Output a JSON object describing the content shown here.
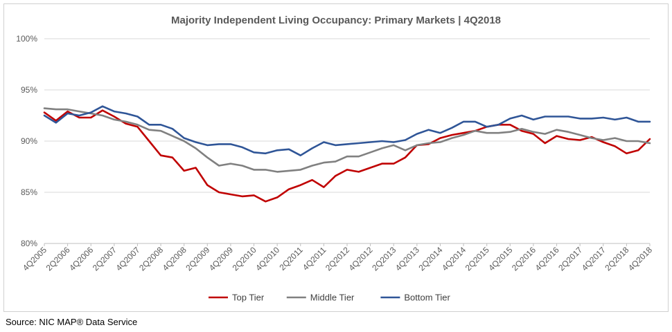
{
  "source_note": "Source: NIC MAP® Data Service",
  "chart_data": {
    "type": "line",
    "title": "Majority Independent Living Occupancy: Primary Markets | 4Q2018",
    "xlabel": "",
    "ylabel": "",
    "ylim": [
      80,
      100
    ],
    "yticks": [
      "80%",
      "85%",
      "90%",
      "95%",
      "100%"
    ],
    "ytick_values": [
      80,
      85,
      90,
      95,
      100
    ],
    "grid": "horizontal",
    "legend_position": "bottom",
    "x_tick_labels": [
      "4Q2005",
      "2Q2006",
      "4Q2006",
      "2Q2007",
      "4Q2007",
      "2Q2008",
      "4Q2008",
      "2Q2009",
      "4Q2009",
      "2Q2010",
      "4Q2010",
      "2Q2011",
      "4Q2011",
      "2Q2012",
      "4Q2012",
      "2Q2013",
      "4Q2013",
      "2Q2014",
      "4Q2014",
      "2Q2015",
      "4Q2015",
      "2Q2016",
      "4Q2016",
      "2Q2017",
      "4Q2017",
      "2Q2018",
      "4Q2018"
    ],
    "x": [
      "4Q2005",
      "1Q2006",
      "2Q2006",
      "3Q2006",
      "4Q2006",
      "1Q2007",
      "2Q2007",
      "3Q2007",
      "4Q2007",
      "1Q2008",
      "2Q2008",
      "3Q2008",
      "4Q2008",
      "1Q2009",
      "2Q2009",
      "3Q2009",
      "4Q2009",
      "1Q2010",
      "2Q2010",
      "3Q2010",
      "4Q2010",
      "1Q2011",
      "2Q2011",
      "3Q2011",
      "4Q2011",
      "1Q2012",
      "2Q2012",
      "3Q2012",
      "4Q2012",
      "1Q2013",
      "2Q2013",
      "3Q2013",
      "4Q2013",
      "1Q2014",
      "2Q2014",
      "3Q2014",
      "4Q2014",
      "1Q2015",
      "2Q2015",
      "3Q2015",
      "4Q2015",
      "1Q2016",
      "2Q2016",
      "3Q2016",
      "4Q2016",
      "1Q2017",
      "2Q2017",
      "3Q2017",
      "4Q2017",
      "1Q2018",
      "2Q2018",
      "3Q2018",
      "4Q2018"
    ],
    "series": [
      {
        "name": "Top Tier",
        "color": "#c00000",
        "values": [
          92.8,
          92.0,
          92.9,
          92.3,
          92.3,
          93.0,
          92.4,
          91.7,
          91.4,
          90.0,
          88.6,
          88.4,
          87.1,
          87.4,
          85.7,
          85.0,
          84.8,
          84.6,
          84.7,
          84.1,
          84.5,
          85.3,
          85.7,
          86.2,
          85.5,
          86.6,
          87.2,
          87.0,
          87.4,
          87.8,
          87.8,
          88.4,
          89.6,
          89.7,
          90.3,
          90.6,
          90.8,
          91.0,
          91.4,
          91.6,
          91.6,
          91.0,
          90.7,
          89.8,
          90.5,
          90.2,
          90.1,
          90.4,
          89.9,
          89.5,
          88.8,
          89.1,
          90.2
        ]
      },
      {
        "name": "Middle Tier",
        "color": "#808080",
        "values": [
          93.2,
          93.1,
          93.1,
          92.9,
          92.7,
          92.5,
          92.1,
          91.9,
          91.6,
          91.1,
          91.0,
          90.5,
          90.0,
          89.3,
          88.4,
          87.6,
          87.8,
          87.6,
          87.2,
          87.2,
          87.0,
          87.1,
          87.2,
          87.6,
          87.9,
          88.0,
          88.5,
          88.5,
          88.9,
          89.3,
          89.6,
          89.1,
          89.6,
          89.8,
          89.9,
          90.3,
          90.6,
          91.0,
          90.8,
          90.8,
          90.9,
          91.2,
          90.9,
          90.7,
          91.1,
          90.9,
          90.6,
          90.3,
          90.1,
          90.3,
          90.0,
          90.0,
          89.8
        ]
      },
      {
        "name": "Bottom Tier",
        "color": "#2f5597",
        "values": [
          92.5,
          91.8,
          92.7,
          92.5,
          92.8,
          93.4,
          92.9,
          92.7,
          92.4,
          91.6,
          91.6,
          91.2,
          90.3,
          89.9,
          89.6,
          89.7,
          89.7,
          89.4,
          88.9,
          88.8,
          89.1,
          89.2,
          88.6,
          89.3,
          89.9,
          89.6,
          89.7,
          89.8,
          89.9,
          90.0,
          89.9,
          90.1,
          90.7,
          91.1,
          90.8,
          91.3,
          91.9,
          91.9,
          91.4,
          91.6,
          92.2,
          92.5,
          92.1,
          92.4,
          92.4,
          92.4,
          92.2,
          92.2,
          92.3,
          92.1,
          92.3,
          91.9,
          91.9
        ]
      }
    ]
  }
}
